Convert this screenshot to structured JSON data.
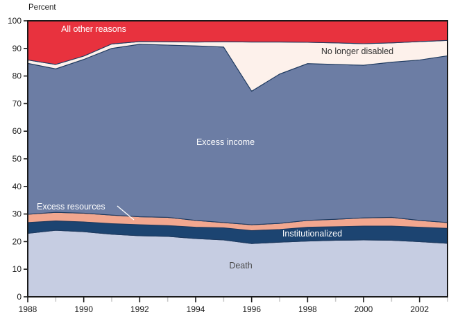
{
  "page": {
    "background": "#ffffff"
  },
  "chart_data": {
    "type": "area",
    "stacked": true,
    "title": "",
    "ylabel": "Percent",
    "xlabel": "",
    "xlim": [
      1988,
      2003
    ],
    "ylim": [
      0,
      100
    ],
    "grid": false,
    "legend": "labels-inside-areas",
    "y_ticks": [
      0,
      10,
      20,
      30,
      40,
      50,
      60,
      70,
      80,
      90,
      100
    ],
    "x_major_ticks": [
      1988,
      1990,
      1992,
      1994,
      1996,
      1998,
      2000,
      2002
    ],
    "x_minor_ticks": [
      1989,
      1991,
      1993,
      1995,
      1997,
      1999,
      2001,
      2003
    ],
    "x": [
      1988,
      1989,
      1990,
      1991,
      1992,
      1993,
      1994,
      1995,
      1996,
      1997,
      1998,
      1999,
      2000,
      2001,
      2002,
      2003
    ],
    "colors": {
      "outline": "#1e3a5f",
      "frame": "#1a1a1a",
      "minor_tick": "#c9c9c9",
      "leader_line": "#ffffff"
    },
    "series": [
      {
        "id": "death",
        "name": "Death",
        "color": "#c6cde2",
        "label_color": "#4a4a4a",
        "values": [
          23.0,
          24.1,
          23.6,
          22.7,
          22.1,
          21.9,
          21.1,
          20.6,
          19.3,
          19.8,
          20.2,
          20.5,
          20.6,
          20.5,
          20.0,
          19.4
        ]
      },
      {
        "id": "institutionalized",
        "name": "Institutionalized",
        "color": "#1c4471",
        "label_color": "#ffffff",
        "values": [
          3.9,
          3.4,
          3.5,
          3.8,
          4.0,
          3.9,
          4.1,
          4.4,
          4.7,
          4.6,
          5.0,
          4.9,
          5.0,
          5.1,
          5.2,
          5.4
        ]
      },
      {
        "id": "excess-resources",
        "name": "Excess resources",
        "color": "#f2a78f",
        "label_color": "#ffffff",
        "values": [
          3.0,
          3.1,
          3.2,
          3.1,
          2.9,
          3.0,
          2.5,
          1.9,
          2.1,
          2.2,
          2.5,
          2.7,
          3.0,
          3.2,
          2.5,
          2.1
        ]
      },
      {
        "id": "excess-income",
        "name": "Excess income",
        "color": "#6c7da4",
        "label_color": "#ffffff",
        "values": [
          54.7,
          52.0,
          55.7,
          60.4,
          62.5,
          62.4,
          63.2,
          63.6,
          48.4,
          54.1,
          56.8,
          56.1,
          55.3,
          56.2,
          58.1,
          60.4
        ]
      },
      {
        "id": "no-longer-disabled",
        "name": "No longer disabled",
        "color": "#fdf1eb",
        "label_color": "#333333",
        "values": [
          1.2,
          1.6,
          1.2,
          1.6,
          1.0,
          1.2,
          1.4,
          1.9,
          17.8,
          11.6,
          7.7,
          7.8,
          7.8,
          7.0,
          6.7,
          5.6
        ]
      },
      {
        "id": "all-other-reasons",
        "name": "All other reasons",
        "color": "#e8323e",
        "label_color": "#ffffff",
        "values": [
          14.2,
          15.8,
          12.8,
          8.4,
          7.5,
          7.6,
          7.7,
          7.6,
          7.7,
          7.7,
          7.8,
          8.0,
          8.3,
          8.0,
          7.5,
          7.1
        ]
      }
    ]
  }
}
